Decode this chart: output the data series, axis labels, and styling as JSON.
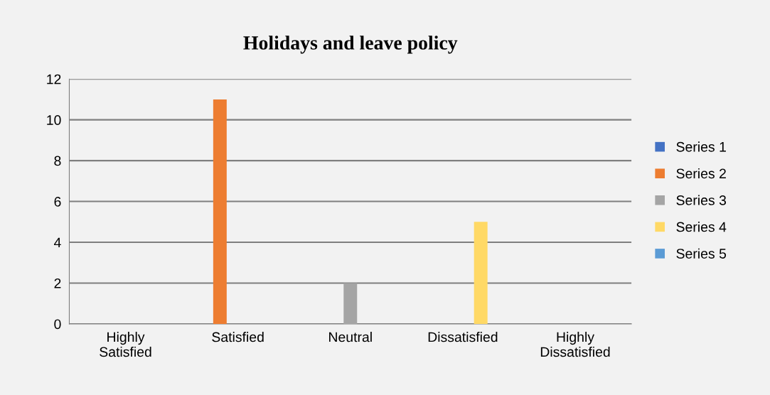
{
  "chart_data": {
    "type": "bar",
    "title": "Holidays and leave policy",
    "categories": [
      "Highly\nSatisfied",
      "Satisfied",
      "Neutral",
      "Dissatisfied",
      "Highly\nDissatisfied"
    ],
    "series": [
      {
        "name": "Series 1",
        "color": "#4472c4",
        "values": [
          0,
          null,
          null,
          null,
          null
        ]
      },
      {
        "name": "Series 2",
        "color": "#ed7d31",
        "values": [
          null,
          11,
          null,
          null,
          null
        ]
      },
      {
        "name": "Series 3",
        "color": "#a5a5a5",
        "values": [
          null,
          null,
          2,
          null,
          null
        ]
      },
      {
        "name": "Series 4",
        "color": "#ffd966",
        "values": [
          null,
          null,
          null,
          5,
          null
        ]
      },
      {
        "name": "Series 5",
        "color": "#5b9bd5",
        "values": [
          null,
          null,
          null,
          null,
          0
        ]
      }
    ],
    "ylim": [
      0,
      12
    ],
    "yticks": [
      0,
      2,
      4,
      6,
      8,
      10,
      12
    ],
    "grid": "y",
    "legend": "right"
  }
}
